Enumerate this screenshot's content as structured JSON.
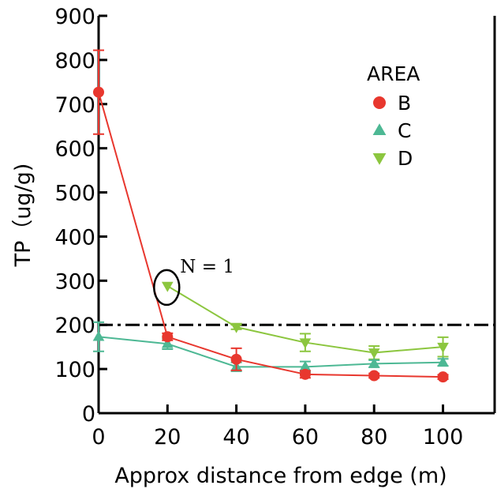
{
  "chart_data": {
    "type": "line",
    "xlabel": "Approx distance from edge (m)",
    "ylabel": "TP（ug/g)",
    "xlim": [
      0,
      115
    ],
    "ylim": [
      0,
      900
    ],
    "xticks": [
      0,
      20,
      40,
      60,
      80,
      100
    ],
    "yticks": [
      0,
      100,
      200,
      300,
      400,
      500,
      600,
      700,
      800,
      900
    ],
    "grid": false,
    "legend": {
      "title": "AREA",
      "placement": "top-right"
    },
    "reference_line": {
      "y": 200,
      "style": "dash-dot",
      "color": "#000000"
    },
    "annotation": {
      "text": "N = 1",
      "x": 20,
      "y": 290
    },
    "series": [
      {
        "name": "B",
        "marker": "circle",
        "color": "#e8372e",
        "x": [
          0,
          20,
          40,
          60,
          80,
          100
        ],
        "values": [
          727,
          173,
          122,
          88,
          85,
          82
        ],
        "errors": [
          95,
          8,
          25,
          8,
          5,
          5
        ]
      },
      {
        "name": "C",
        "marker": "triangle-up",
        "color": "#4db894",
        "x": [
          0,
          20,
          40,
          60,
          80,
          100
        ],
        "values": [
          173,
          157,
          105,
          105,
          112,
          115
        ],
        "errors": [
          33,
          12,
          10,
          12,
          8,
          8
        ]
      },
      {
        "name": "D",
        "marker": "triangle-down",
        "color": "#8cc63f",
        "x": [
          20,
          40,
          60,
          80,
          100
        ],
        "values": [
          288,
          195,
          160,
          137,
          150
        ],
        "errors": [
          0,
          5,
          20,
          15,
          22
        ]
      }
    ]
  }
}
